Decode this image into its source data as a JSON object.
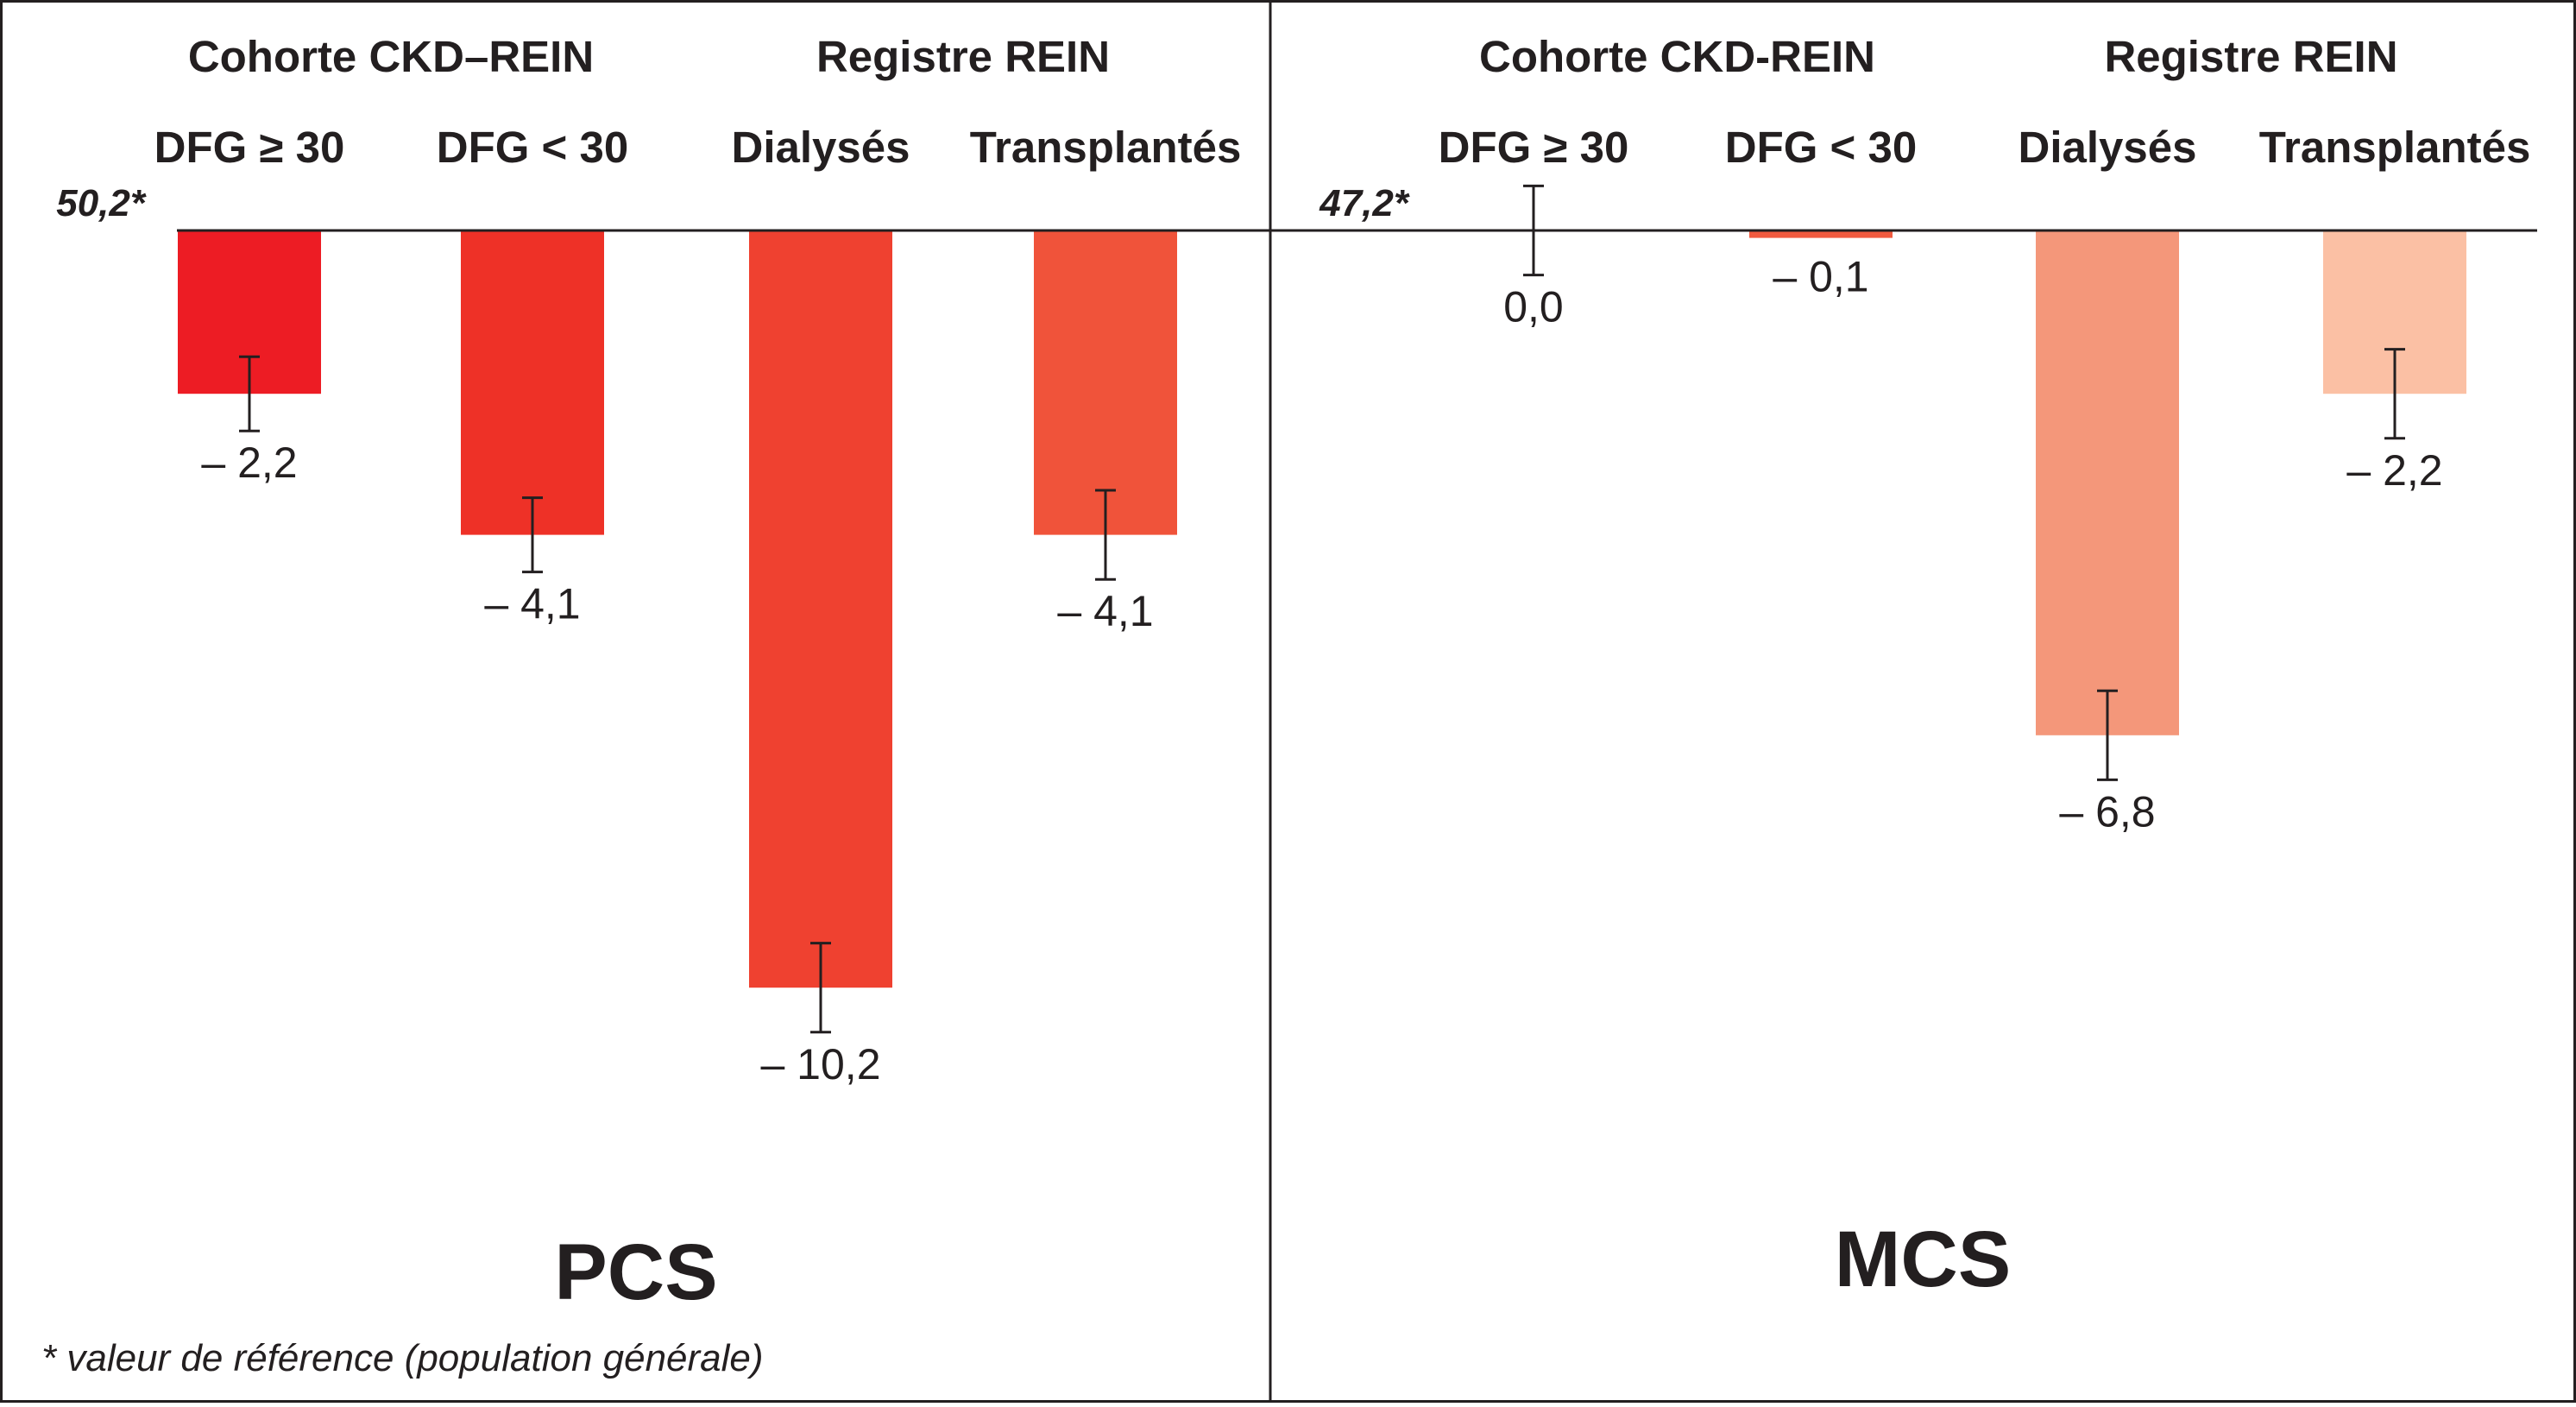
{
  "footnote": "* valeur de référence (population générale)",
  "chart_data": [
    {
      "type": "bar",
      "title": "PCS",
      "reference_label": "50,2*",
      "reference_value": 50.2,
      "groups": [
        {
          "label": "Cohorte CKD–REIN",
          "categories": [
            "DFG ≥ 30",
            "DFG < 30"
          ]
        },
        {
          "label": "Registre REIN",
          "categories": [
            "Dialysés",
            "Transplantés"
          ]
        }
      ],
      "categories": [
        "DFG ≥ 30",
        "DFG < 30",
        "Dialysés",
        "Transplantés"
      ],
      "values": [
        -2.2,
        -4.1,
        -10.2,
        -4.1
      ],
      "value_labels": [
        "– 2,2",
        "– 4,1",
        "– 10,2",
        "– 4,1"
      ],
      "error_bar_half_width": [
        0.5,
        0.5,
        0.6,
        0.6
      ],
      "colors": [
        "#ed1c24",
        "#ee3127",
        "#ef4130",
        "#f0533a"
      ],
      "ylim": [
        -12.6,
        2.0
      ]
    },
    {
      "type": "bar",
      "title": "MCS",
      "reference_label": "47,2*",
      "reference_value": 47.2,
      "groups": [
        {
          "label": "Cohorte CKD-REIN",
          "categories": [
            "DFG ≥ 30",
            "DFG < 30"
          ]
        },
        {
          "label": "Registre REIN",
          "categories": [
            "Dialysés",
            "Transplantés"
          ]
        }
      ],
      "categories": [
        "DFG ≥ 30",
        "DFG < 30",
        "Dialysés",
        "Transplantés"
      ],
      "values": [
        0.0,
        -0.1,
        -6.8,
        -2.2
      ],
      "value_labels": [
        "0,0",
        "– 0,1",
        "– 6,8",
        "– 2,2"
      ],
      "error_bar_half_width": [
        0.6,
        0.0,
        0.6,
        0.6
      ],
      "colors": [
        "#f15a3f",
        "#f15a3f",
        "#f4977a",
        "#fbc0a4"
      ],
      "ylim": [
        -12.6,
        2.0
      ]
    }
  ]
}
